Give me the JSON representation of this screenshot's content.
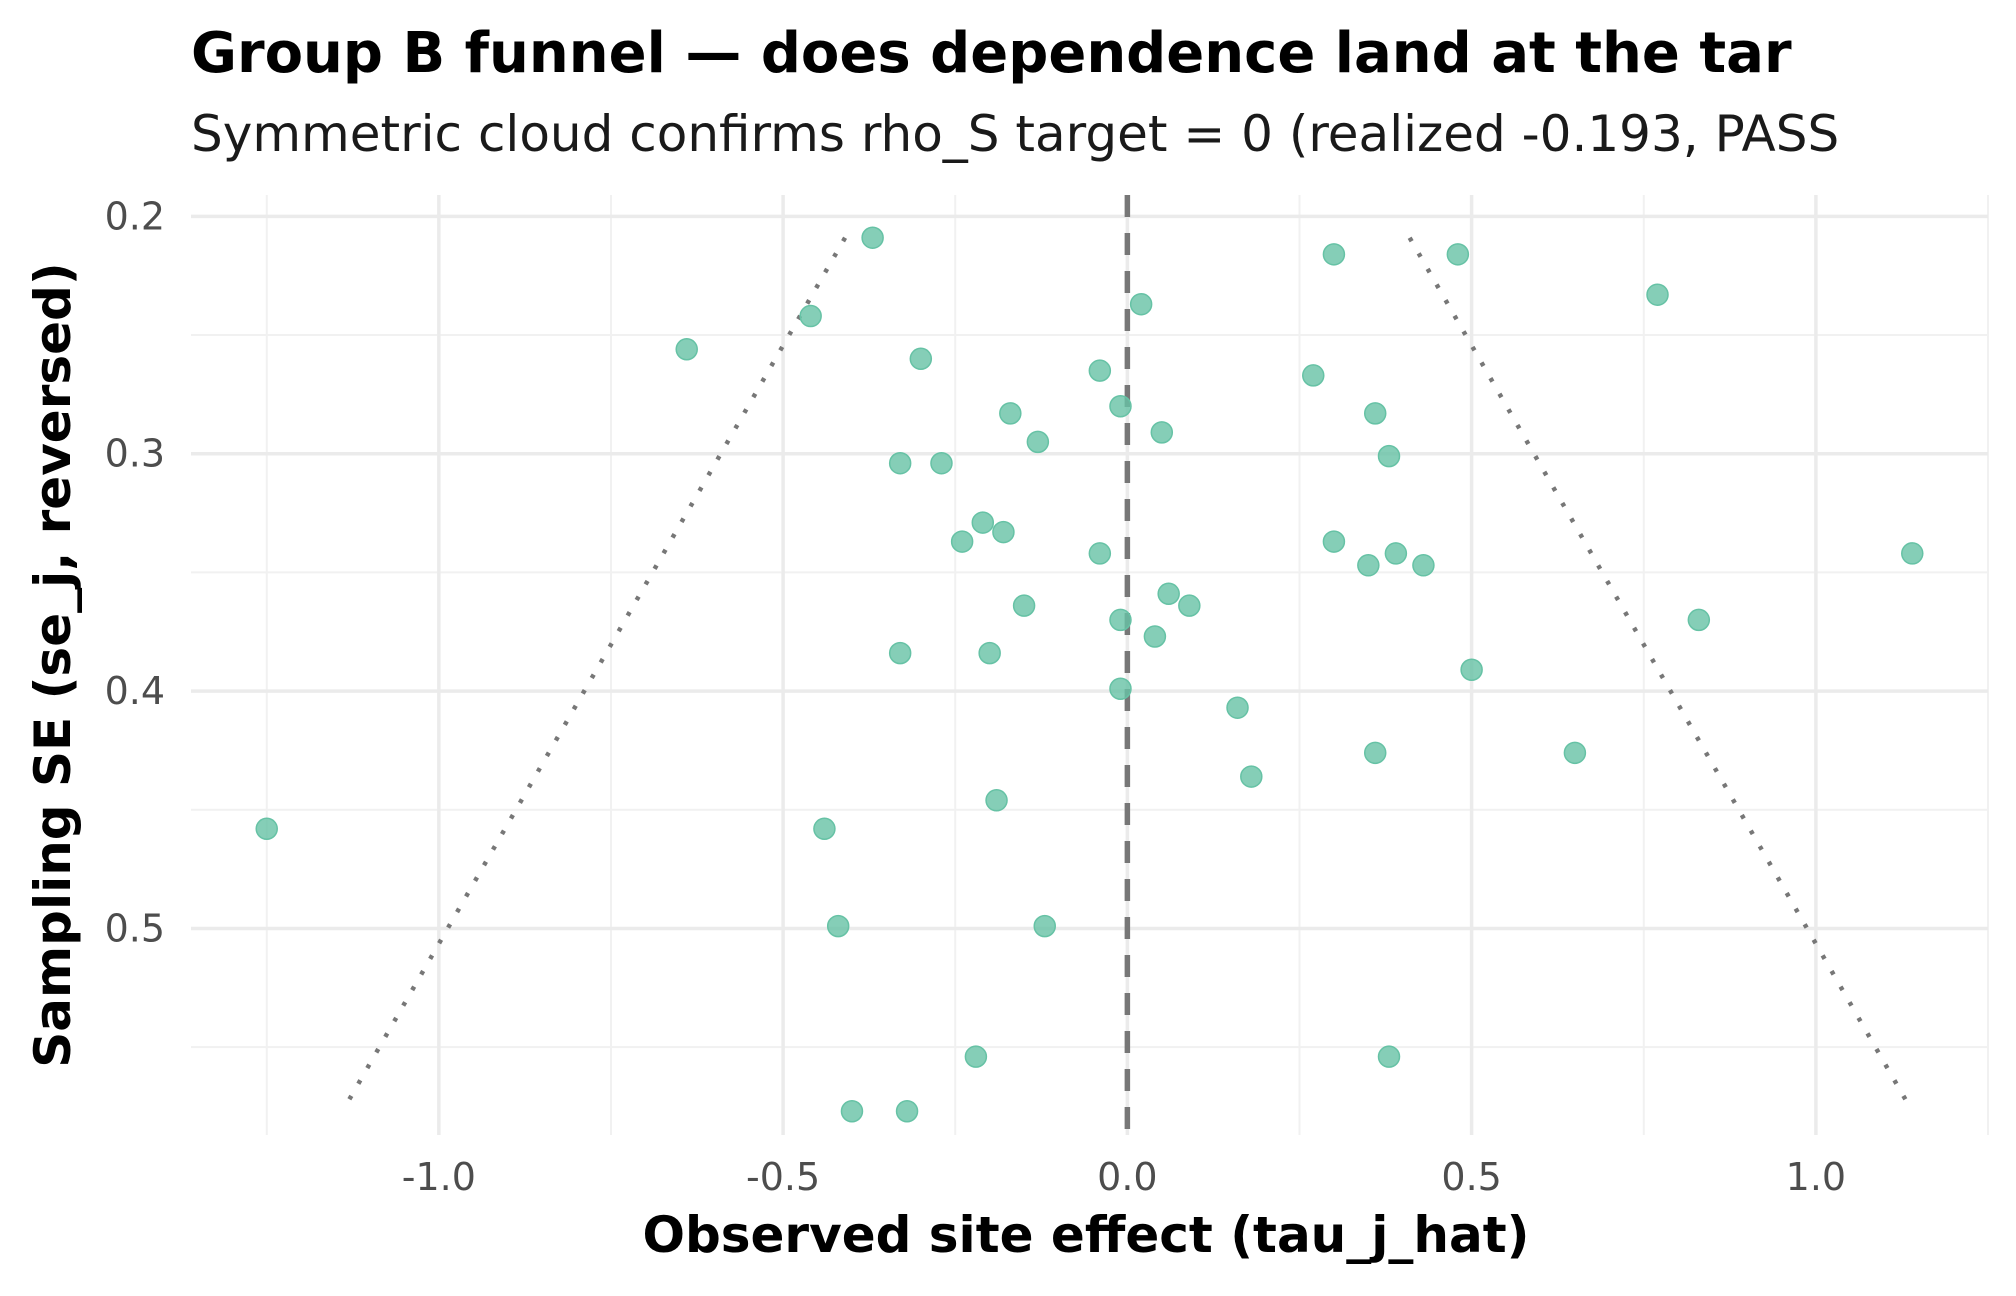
{
  "chart_data": {
    "type": "scatter",
    "title": "Group B funnel — does dependence land at the tar",
    "subtitle": "Symmetric cloud confirms rho_S target = 0 (realized -0.193, PASS",
    "xlabel": "Observed site effect (tau_j_hat)",
    "ylabel": "Sampling SE (se_j, reversed)",
    "xlim": [
      -1.36,
      1.25
    ],
    "ylim": [
      0.191,
      0.587
    ],
    "y_reversed": true,
    "grid": true,
    "legend": "none",
    "x_ticks": [
      -1.0,
      -0.5,
      0.0,
      0.5,
      1.0
    ],
    "x_tick_labels": [
      "-1.0",
      "-0.5",
      "0.0",
      "0.5",
      "1.0"
    ],
    "y_ticks": [
      0.2,
      0.3,
      0.4,
      0.5
    ],
    "y_tick_labels": [
      "0.2",
      "0.3",
      "0.4",
      "0.5"
    ],
    "point_color": "#66c2a5",
    "reference_line": {
      "x": 0.0,
      "style": "dashed",
      "color": "#777777"
    },
    "funnel_bounds": {
      "style": "dotted",
      "color": "#777777",
      "left": [
        [
          -0.41,
          0.209
        ],
        [
          -1.14,
          0.577
        ]
      ],
      "right": [
        [
          0.41,
          0.209
        ],
        [
          1.14,
          0.577
        ]
      ]
    },
    "points": [
      {
        "x": -0.37,
        "y": 0.209
      },
      {
        "x": 0.3,
        "y": 0.216
      },
      {
        "x": 0.48,
        "y": 0.216
      },
      {
        "x": 0.77,
        "y": 0.233
      },
      {
        "x": 0.02,
        "y": 0.237
      },
      {
        "x": -0.46,
        "y": 0.242
      },
      {
        "x": -0.64,
        "y": 0.256
      },
      {
        "x": -0.3,
        "y": 0.26
      },
      {
        "x": -0.04,
        "y": 0.265
      },
      {
        "x": 0.27,
        "y": 0.267
      },
      {
        "x": -0.01,
        "y": 0.28
      },
      {
        "x": -0.17,
        "y": 0.283
      },
      {
        "x": 0.36,
        "y": 0.283
      },
      {
        "x": 0.05,
        "y": 0.291
      },
      {
        "x": -0.13,
        "y": 0.295
      },
      {
        "x": 0.38,
        "y": 0.301
      },
      {
        "x": -0.33,
        "y": 0.304
      },
      {
        "x": -0.27,
        "y": 0.304
      },
      {
        "x": -0.21,
        "y": 0.329
      },
      {
        "x": -0.18,
        "y": 0.333
      },
      {
        "x": -0.24,
        "y": 0.337
      },
      {
        "x": 0.3,
        "y": 0.337
      },
      {
        "x": -0.04,
        "y": 0.342
      },
      {
        "x": 0.39,
        "y": 0.342
      },
      {
        "x": 0.35,
        "y": 0.347
      },
      {
        "x": 0.43,
        "y": 0.347
      },
      {
        "x": 1.14,
        "y": 0.342
      },
      {
        "x": 0.06,
        "y": 0.359
      },
      {
        "x": -0.15,
        "y": 0.364
      },
      {
        "x": 0.09,
        "y": 0.364
      },
      {
        "x": -0.01,
        "y": 0.37
      },
      {
        "x": 0.83,
        "y": 0.37
      },
      {
        "x": 0.04,
        "y": 0.377
      },
      {
        "x": -0.33,
        "y": 0.384
      },
      {
        "x": -0.2,
        "y": 0.384
      },
      {
        "x": 0.5,
        "y": 0.391
      },
      {
        "x": -0.01,
        "y": 0.399
      },
      {
        "x": 0.16,
        "y": 0.407
      },
      {
        "x": 0.36,
        "y": 0.426
      },
      {
        "x": 0.65,
        "y": 0.426
      },
      {
        "x": 0.18,
        "y": 0.436
      },
      {
        "x": -0.19,
        "y": 0.446
      },
      {
        "x": -1.25,
        "y": 0.458
      },
      {
        "x": -0.44,
        "y": 0.458
      },
      {
        "x": -0.42,
        "y": 0.499
      },
      {
        "x": -0.12,
        "y": 0.499
      },
      {
        "x": -0.22,
        "y": 0.554
      },
      {
        "x": 0.38,
        "y": 0.554
      },
      {
        "x": -0.4,
        "y": 0.577
      },
      {
        "x": -0.32,
        "y": 0.577
      }
    ]
  }
}
